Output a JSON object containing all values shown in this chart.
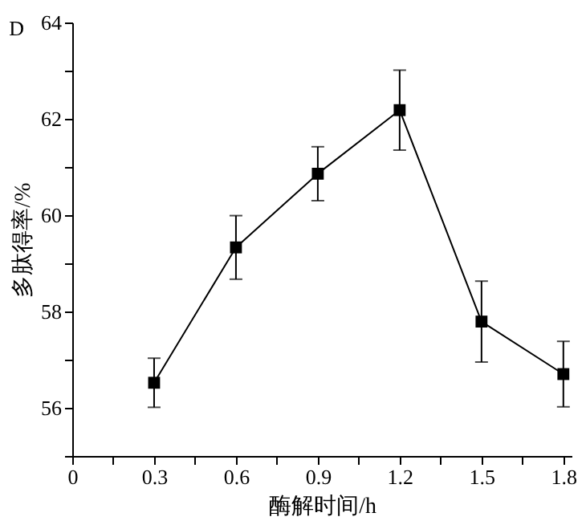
{
  "chart_data": {
    "type": "line",
    "annotations": [
      "D"
    ],
    "xlabel": "酶解时间/h",
    "ylabel": "多肽得率/%",
    "x": [
      0.3,
      0.6,
      0.9,
      1.2,
      1.5,
      1.8
    ],
    "series": [
      {
        "color": "#000000",
        "values": [
          56.52,
          59.33,
          60.86,
          62.18,
          57.79,
          56.7
        ],
        "errors": [
          0.51,
          0.66,
          0.56,
          0.83,
          0.84,
          0.68
        ]
      }
    ],
    "xlim": [
      0,
      1.83
    ],
    "xticks": [
      0,
      {
        "value": 0.15,
        "label": null
      },
      0.3,
      {
        "value": 0.45,
        "label": null
      },
      0.6,
      {
        "value": 0.75,
        "label": null
      },
      0.9,
      {
        "value": 1.05,
        "label": null
      },
      1.2,
      {
        "value": 1.35,
        "label": null
      },
      1.5,
      {
        "value": 1.65,
        "label": null
      },
      1.8
    ],
    "ylim": [
      55,
      64
    ],
    "yticks": [
      {
        "value": 55,
        "label": null
      },
      56,
      {
        "value": 57,
        "label": null
      },
      58,
      {
        "value": 59,
        "label": null
      },
      60,
      {
        "value": 61,
        "label": null
      },
      62,
      {
        "value": 63,
        "label": null
      },
      64
    ],
    "marker": "square",
    "line_style": "solid",
    "grid": false,
    "legend": false
  }
}
